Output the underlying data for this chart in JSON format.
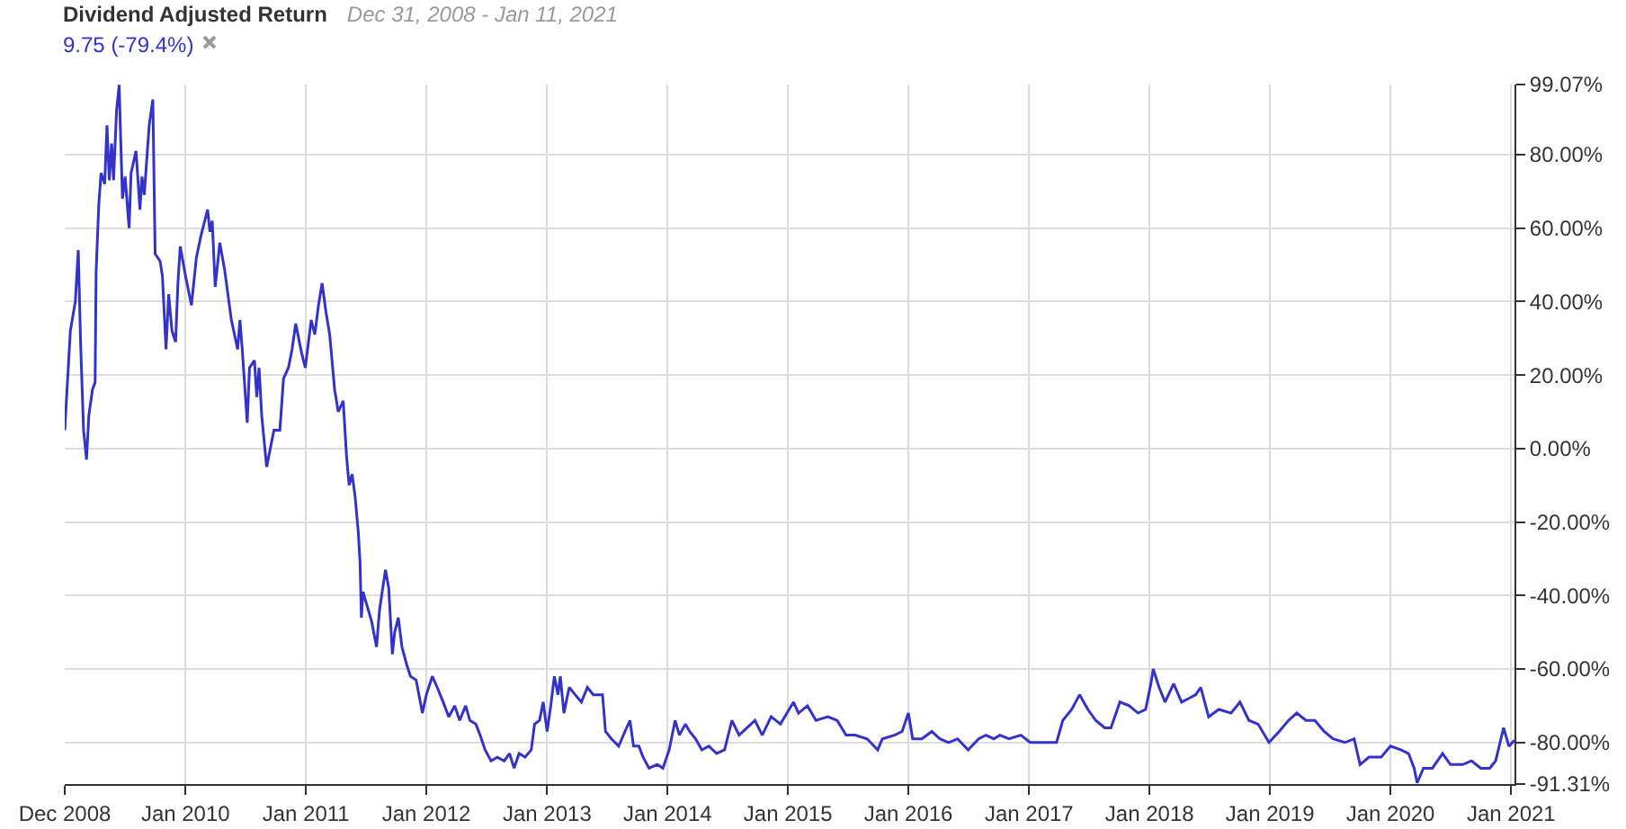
{
  "chart_data": {
    "type": "line",
    "title": "Dividend Adjusted Return",
    "subtitle": "Dec 31, 2008 - Jan 11, 2021",
    "series": [
      {
        "name": "9.75 (-79.4%)",
        "color": "#3333cc",
        "x": [
          "2008-12-31",
          "2009-01-17",
          "2009-02-01",
          "2009-02-10",
          "2009-02-17",
          "2009-02-26",
          "2009-03-07",
          "2009-03-14",
          "2009-03-25",
          "2009-04-02",
          "2009-04-05",
          "2009-04-13",
          "2009-04-20",
          "2009-05-01",
          "2009-05-08",
          "2009-05-15",
          "2009-05-22",
          "2009-05-28",
          "2009-06-06",
          "2009-06-14",
          "2009-06-17",
          "2009-06-24",
          "2009-07-02",
          "2009-07-14",
          "2009-07-20",
          "2009-08-04",
          "2009-08-16",
          "2009-08-22",
          "2009-08-29",
          "2009-09-13",
          "2009-09-24",
          "2009-10-01",
          "2009-10-16",
          "2009-10-23",
          "2009-11-03",
          "2009-11-11",
          "2009-11-21",
          "2009-12-02",
          "2009-12-09",
          "2009-12-16",
          "2010-01-01",
          "2010-01-19",
          "2010-02-03",
          "2010-02-17",
          "2010-03-09",
          "2010-03-16",
          "2010-03-23",
          "2010-04-01",
          "2010-04-15",
          "2010-04-29",
          "2010-05-20",
          "2010-06-08",
          "2010-06-15",
          "2010-06-22",
          "2010-07-07",
          "2010-07-14",
          "2010-07-29",
          "2010-08-05",
          "2010-08-12",
          "2010-08-20",
          "2010-09-04",
          "2010-09-26",
          "2010-10-14",
          "2010-10-25",
          "2010-11-09",
          "2010-11-20",
          "2010-12-01",
          "2010-12-19",
          "2010-12-30",
          "2011-01-17",
          "2011-01-28",
          "2011-02-08",
          "2011-02-19",
          "2011-03-03",
          "2011-03-14",
          "2011-03-29",
          "2011-04-09",
          "2011-04-24",
          "2011-05-04",
          "2011-05-12",
          "2011-05-21",
          "2011-05-30",
          "2011-06-09",
          "2011-06-14",
          "2011-06-18",
          "2011-06-23",
          "2011-07-06",
          "2011-07-19",
          "2011-08-03",
          "2011-08-12",
          "2011-08-30",
          "2011-09-09",
          "2011-09-20",
          "2011-09-27",
          "2011-10-08",
          "2011-10-19",
          "2011-11-03",
          "2011-11-14",
          "2011-12-01",
          "2011-12-20",
          "2012-01-01",
          "2012-01-19",
          "2012-02-03",
          "2012-02-21",
          "2012-03-09",
          "2012-03-27",
          "2012-04-11",
          "2012-04-29",
          "2012-05-12",
          "2012-05-30",
          "2012-06-12",
          "2012-06-27",
          "2012-07-15",
          "2012-08-03",
          "2012-08-24",
          "2012-09-09",
          "2012-09-23",
          "2012-10-08",
          "2012-10-26",
          "2012-11-14",
          "2012-11-24",
          "2012-12-09",
          "2012-12-20",
          "2013-01-01",
          "2013-01-12",
          "2013-01-23",
          "2013-02-03",
          "2013-02-10",
          "2013-02-21",
          "2013-03-09",
          "2013-03-27",
          "2013-04-15",
          "2013-05-03",
          "2013-05-21",
          "2013-06-18",
          "2013-06-27",
          "2013-07-15",
          "2013-08-06",
          "2013-08-25",
          "2013-09-09",
          "2013-09-20",
          "2013-10-06",
          "2013-10-19",
          "2013-11-06",
          "2013-12-01",
          "2013-12-18",
          "2014-01-06",
          "2014-01-24",
          "2014-02-06",
          "2014-02-24",
          "2014-03-09",
          "2014-03-27",
          "2014-04-15",
          "2014-05-06",
          "2014-05-30",
          "2014-06-23",
          "2014-07-15",
          "2014-08-06",
          "2014-08-30",
          "2014-09-23",
          "2014-10-15",
          "2014-11-11",
          "2014-12-09",
          "2015-01-18",
          "2015-02-02",
          "2015-03-01",
          "2015-03-27",
          "2015-05-02",
          "2015-05-30",
          "2015-06-26",
          "2015-07-23",
          "2015-08-29",
          "2015-09-30",
          "2015-10-14",
          "2015-11-20",
          "2015-12-13",
          "2016-01-01",
          "2016-01-14",
          "2016-02-11",
          "2016-03-12",
          "2016-04-05",
          "2016-05-02",
          "2016-05-29",
          "2016-06-30",
          "2016-08-01",
          "2016-08-23",
          "2016-09-16",
          "2016-10-04",
          "2016-11-01",
          "2016-12-07",
          "2017-01-04",
          "2017-02-19",
          "2017-03-25",
          "2017-04-13",
          "2017-05-10",
          "2017-06-03",
          "2017-06-28",
          "2017-07-22",
          "2017-08-18",
          "2017-09-06",
          "2017-10-03",
          "2017-10-31",
          "2017-11-27",
          "2017-12-20",
          "2018-01-05",
          "2018-01-12",
          "2018-01-30",
          "2018-02-17",
          "2018-03-15",
          "2018-04-08",
          "2018-04-30",
          "2018-05-21",
          "2018-06-05",
          "2018-06-29",
          "2018-07-30",
          "2018-09-05",
          "2018-10-02",
          "2018-10-29",
          "2018-11-26",
          "2018-12-29",
          "2019-01-29",
          "2019-02-26",
          "2019-03-23",
          "2019-04-20",
          "2019-05-17",
          "2019-06-14",
          "2019-07-11",
          "2019-08-16",
          "2019-09-13",
          "2019-10-01",
          "2019-10-28",
          "2019-12-04",
          "2020-01-01",
          "2020-02-01",
          "2020-02-25",
          "2020-03-13",
          "2020-03-22",
          "2020-04-10",
          "2020-05-07",
          "2020-06-07",
          "2020-07-01",
          "2020-08-07",
          "2020-09-03",
          "2020-10-01",
          "2020-10-28",
          "2020-11-15",
          "2020-12-09",
          "2020-12-25",
          "2021-01-11"
        ],
        "values": [
          5,
          32,
          40,
          54,
          29,
          5,
          -3,
          9,
          16,
          18,
          48,
          66,
          75,
          72,
          88,
          73,
          83,
          73,
          92,
          99,
          89,
          68,
          74,
          60,
          75,
          81,
          65,
          74,
          69,
          88,
          95,
          53,
          51,
          47,
          27,
          42,
          32,
          29,
          45,
          55,
          47,
          39,
          52,
          58,
          65,
          59,
          62,
          44,
          56,
          49,
          35,
          27,
          35,
          27,
          7,
          22,
          24,
          14,
          22,
          9,
          -5,
          5,
          5,
          19,
          22,
          27,
          34,
          26,
          22,
          35,
          31,
          39,
          45,
          37,
          31,
          16,
          10,
          13,
          -2,
          -10,
          -7,
          -13,
          -23,
          -31,
          -46,
          -39,
          -43,
          -47,
          -54,
          -44,
          -33,
          -38,
          -56,
          -50,
          -46,
          -54,
          -59,
          -62,
          -63,
          -72,
          -67,
          -62,
          -65,
          -69,
          -73,
          -70,
          -74,
          -70,
          -74,
          -75,
          -78,
          -82,
          -85,
          -84,
          -85,
          -83,
          -87,
          -83,
          -84,
          -82,
          -75,
          -74,
          -69,
          -77,
          -70,
          -62,
          -67,
          -62,
          -72,
          -65,
          -67,
          -69,
          -65,
          -67,
          -67,
          -77,
          -79,
          -81,
          -77,
          -74,
          -81,
          -81,
          -84,
          -87,
          -86,
          -87,
          -82,
          -74,
          -78,
          -75,
          -77,
          -79,
          -82,
          -81,
          -83,
          -82,
          -74,
          -78,
          -76,
          -74,
          -78,
          -73,
          -75,
          -69,
          -72,
          -70,
          -74,
          -73,
          -74,
          -78,
          -78,
          -79,
          -82,
          -79,
          -78,
          -77,
          -72,
          -79,
          -79,
          -77,
          -79,
          -80,
          -79,
          -82,
          -79,
          -78,
          -79,
          -78,
          -79,
          -78,
          -80,
          -80,
          -80,
          -74,
          -71,
          -67,
          -71,
          -74,
          -76,
          -76,
          -69,
          -70,
          -72,
          -71,
          -64,
          -60,
          -65,
          -69,
          -64,
          -69,
          -68,
          -67,
          -65,
          -73,
          -71,
          -72,
          -69,
          -74,
          -75,
          -80,
          -77,
          -74,
          -72,
          -74,
          -74,
          -77,
          -79,
          -80,
          -79,
          -86,
          -84,
          -84,
          -81,
          -82,
          -83,
          -87,
          -91,
          -87,
          -87,
          -83,
          -86,
          -86,
          -85,
          -87,
          -87,
          -85,
          -76,
          -81,
          -79.4
        ]
      }
    ],
    "xlim": [
      "2008-12-31",
      "2021-01-11"
    ],
    "xticks": [
      {
        "value": "2008-12-31",
        "label": "Dec 2008"
      },
      {
        "value": "2010-01-01",
        "label": "Jan 2010"
      },
      {
        "value": "2011-01-01",
        "label": "Jan 2011"
      },
      {
        "value": "2012-01-01",
        "label": "Jan 2012"
      },
      {
        "value": "2013-01-01",
        "label": "Jan 2013"
      },
      {
        "value": "2014-01-01",
        "label": "Jan 2014"
      },
      {
        "value": "2015-01-01",
        "label": "Jan 2015"
      },
      {
        "value": "2016-01-01",
        "label": "Jan 2016"
      },
      {
        "value": "2017-01-01",
        "label": "Jan 2017"
      },
      {
        "value": "2018-01-01",
        "label": "Jan 2018"
      },
      {
        "value": "2019-01-01",
        "label": "Jan 2019"
      },
      {
        "value": "2020-01-01",
        "label": "Jan 2020"
      },
      {
        "value": "2021-01-01",
        "label": "Jan 2021"
      }
    ],
    "ylim": [
      -91.31,
      99.07
    ],
    "yticks": [
      {
        "value": 99.07,
        "label": "99.07%"
      },
      {
        "value": 80,
        "label": "80.00%"
      },
      {
        "value": 60,
        "label": "60.00%"
      },
      {
        "value": 40,
        "label": "40.00%"
      },
      {
        "value": 20,
        "label": "20.00%"
      },
      {
        "value": 0,
        "label": "0.00%"
      },
      {
        "value": -20,
        "label": "-20.00%"
      },
      {
        "value": -40,
        "label": "-40.00%"
      },
      {
        "value": -60,
        "label": "-60.00%"
      },
      {
        "value": -80,
        "label": "-80.00%"
      },
      {
        "value": -91.31,
        "label": "-91.31%"
      }
    ],
    "grid": true,
    "legend": "top left"
  }
}
